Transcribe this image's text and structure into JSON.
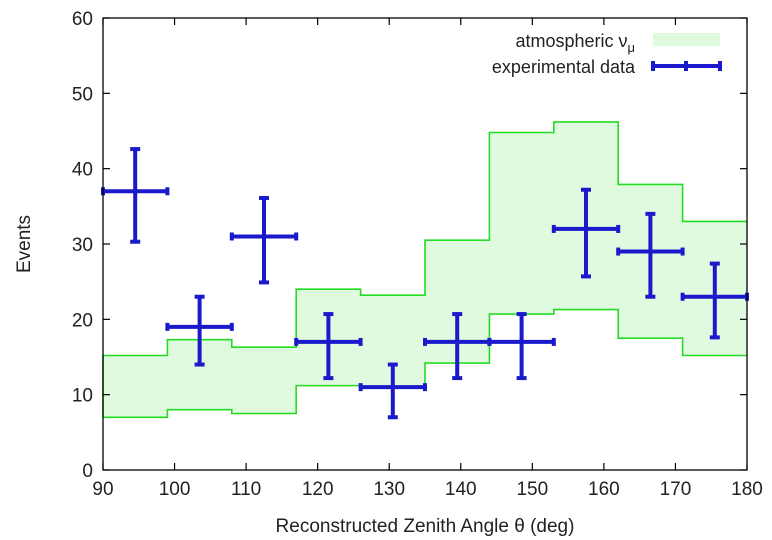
{
  "chart_data": {
    "type": "step-band-with-errorbars",
    "title": "",
    "xlabel": "Reconstructed Zenith Angle θ (deg)",
    "ylabel": "Events",
    "xlim": [
      90,
      180
    ],
    "ylim": [
      0,
      60
    ],
    "x_ticks": [
      90,
      100,
      110,
      120,
      130,
      140,
      150,
      160,
      170,
      180
    ],
    "y_ticks": [
      0,
      10,
      20,
      30,
      40,
      50,
      60
    ],
    "grid": false,
    "legend_position": "top-right",
    "bin_edges": [
      90,
      99,
      108,
      117,
      126,
      135,
      144,
      153,
      162,
      171,
      180
    ],
    "series": [
      {
        "name": "atmospheric ν_μ",
        "legend_label": "atmospheric νμ",
        "kind": "band",
        "color": "#22dd22",
        "fill": "#e0fae0",
        "upper": [
          15.2,
          17.3,
          16.3,
          24.0,
          23.2,
          30.5,
          44.8,
          46.2,
          37.9,
          33.0
        ],
        "lower": [
          7.0,
          8.0,
          7.5,
          11.2,
          11.0,
          14.2,
          20.7,
          21.3,
          17.5,
          15.2
        ]
      },
      {
        "name": "experimental data",
        "kind": "errorbar",
        "color": "#1a1acc",
        "x": [
          94.5,
          103.5,
          112.5,
          121.5,
          130.5,
          139.5,
          148.5,
          157.5,
          166.5,
          175.5
        ],
        "y": [
          37,
          19,
          31,
          17,
          11,
          17,
          17,
          32,
          29,
          23
        ],
        "y_upper": [
          42.6,
          23.0,
          36.1,
          20.7,
          14.0,
          20.7,
          20.7,
          37.2,
          34.0,
          27.4
        ],
        "y_lower": [
          30.3,
          14.0,
          24.9,
          12.2,
          7.0,
          12.2,
          12.2,
          25.7,
          23.0,
          17.6
        ]
      }
    ]
  }
}
